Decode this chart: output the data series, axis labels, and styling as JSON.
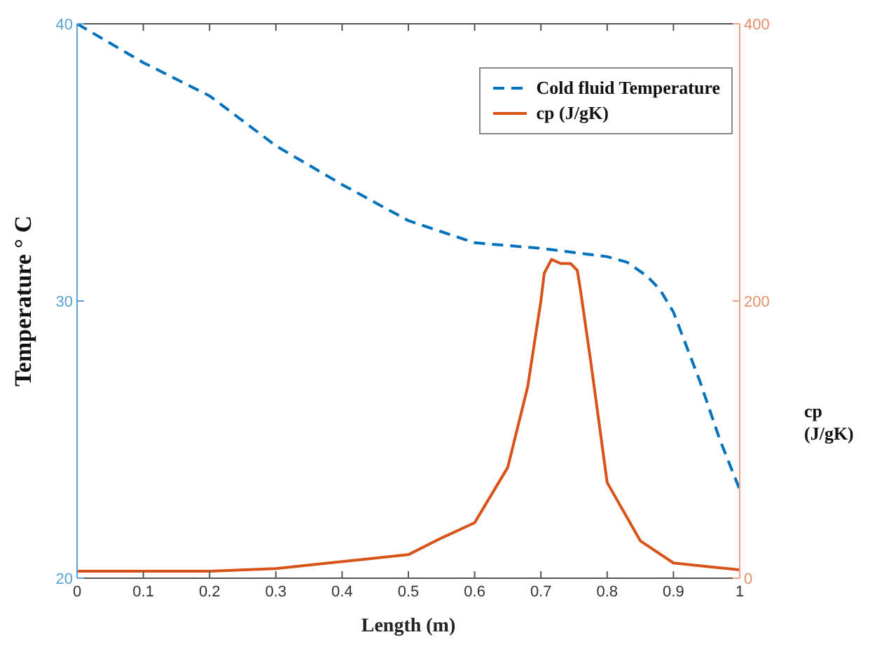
{
  "chart_data": {
    "type": "line",
    "xlabel": "Length (m)",
    "ylabel": "Temperature ° C",
    "y2label": "cp (J/gK)",
    "xlim": [
      0,
      1
    ],
    "xticks": [
      0,
      0.1,
      0.2,
      0.3,
      0.4,
      0.5,
      0.6,
      0.7,
      0.8,
      0.9,
      1
    ],
    "ylim": [
      20,
      40
    ],
    "yticks": [
      20,
      30,
      40
    ],
    "y2lim": [
      0,
      400
    ],
    "y2ticks": [
      0,
      200,
      400
    ],
    "legend": "top right",
    "grid": false,
    "marker": "none",
    "series": [
      {
        "name": "Cold fluid Temperature",
        "color": "#0072bd",
        "line_style": "dashed",
        "x": [
          0,
          0.1,
          0.2,
          0.3,
          0.4,
          0.5,
          0.6,
          0.7,
          0.8,
          0.83,
          0.86,
          0.88,
          0.9,
          0.94,
          0.97,
          1
        ],
        "values": [
          40,
          38.6,
          37.4,
          35.6,
          34.2,
          32.9,
          32.1,
          31.9,
          31.6,
          31.4,
          30.9,
          30.4,
          29.6,
          27.1,
          25,
          23.2
        ]
      },
      {
        "name": "cp (J/gK)",
        "color": "#d95319",
        "line_style": "solid",
        "axis": "y2",
        "x": [
          0,
          0.2,
          0.3,
          0.4,
          0.5,
          0.55,
          0.6,
          0.65,
          0.68,
          0.7,
          0.705,
          0.716,
          0.73,
          0.745,
          0.755,
          0.76,
          0.775,
          0.8,
          0.85,
          0.9,
          1
        ],
        "values": [
          5,
          5,
          7,
          12,
          17,
          29,
          40,
          80,
          138,
          200,
          220,
          230,
          227,
          227,
          222,
          207,
          157,
          69,
          27,
          11,
          6
        ]
      }
    ]
  }
}
